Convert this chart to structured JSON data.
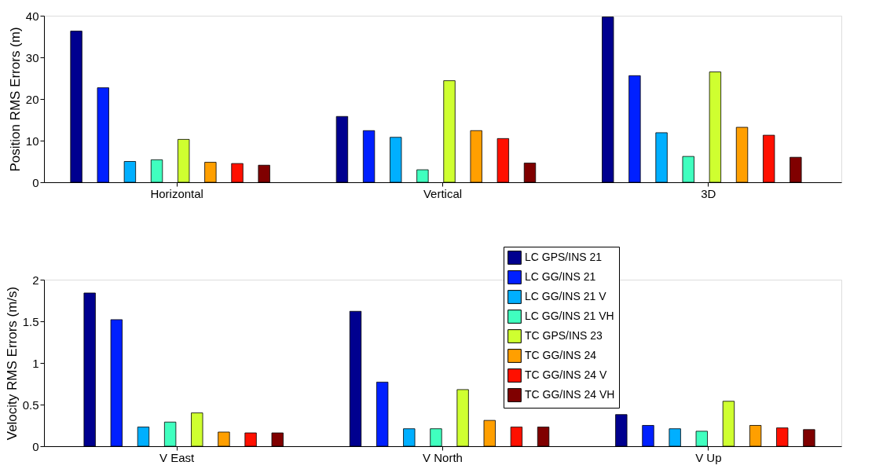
{
  "chart_data": [
    {
      "type": "bar",
      "ylabel": "Position RMS Errors (m)",
      "categories": [
        "Horizontal",
        "Vertical",
        "3D"
      ],
      "ylim": [
        0,
        40
      ],
      "yticks": [
        0,
        10,
        20,
        30,
        40
      ],
      "grid": false,
      "series": [
        {
          "color": "#00008f",
          "values": [
            36.3,
            15.8,
            39.7
          ]
        },
        {
          "color": "#0020ff",
          "values": [
            22.7,
            12.4,
            25.6
          ]
        },
        {
          "color": "#00afff",
          "values": [
            5.0,
            10.8,
            11.9
          ]
        },
        {
          "color": "#40ffbf",
          "values": [
            5.4,
            3.0,
            6.2
          ]
        },
        {
          "color": "#cfff30",
          "values": [
            10.3,
            24.4,
            26.5
          ]
        },
        {
          "color": "#ff9f00",
          "values": [
            4.8,
            12.4,
            13.2
          ]
        },
        {
          "color": "#ff1000",
          "values": [
            4.5,
            10.5,
            11.3
          ]
        },
        {
          "color": "#800000",
          "values": [
            4.1,
            4.6,
            6.0
          ]
        }
      ]
    },
    {
      "type": "bar",
      "ylabel": "Velocity RMS Errors (m/s)",
      "categories": [
        "V East",
        "V North",
        "V Up"
      ],
      "ylim": [
        0,
        2
      ],
      "yticks": [
        0,
        0.5,
        1,
        1.5,
        2
      ],
      "grid": false,
      "legend": "top",
      "series": [
        {
          "name": "LC GPS/INS 21",
          "color": "#00008f",
          "values": [
            1.84,
            1.62,
            0.38
          ]
        },
        {
          "name": "LC GG/INS 21",
          "color": "#0020ff",
          "values": [
            1.52,
            0.77,
            0.25
          ]
        },
        {
          "name": "LC GG/INS 21 V",
          "color": "#00afff",
          "values": [
            0.23,
            0.21,
            0.21
          ]
        },
        {
          "name": "LC GG/INS 21 VH",
          "color": "#40ffbf",
          "values": [
            0.29,
            0.21,
            0.18
          ]
        },
        {
          "name": "TC GPS/INS 23",
          "color": "#cfff30",
          "values": [
            0.4,
            0.68,
            0.54
          ]
        },
        {
          "name": "TC GG/INS 24",
          "color": "#ff9f00",
          "values": [
            0.17,
            0.31,
            0.25
          ]
        },
        {
          "name": "TC GG/INS 24 V",
          "color": "#ff1000",
          "values": [
            0.16,
            0.23,
            0.22
          ]
        },
        {
          "name": "TC GG/INS 24 VH",
          "color": "#800000",
          "values": [
            0.16,
            0.23,
            0.2
          ]
        }
      ]
    }
  ]
}
